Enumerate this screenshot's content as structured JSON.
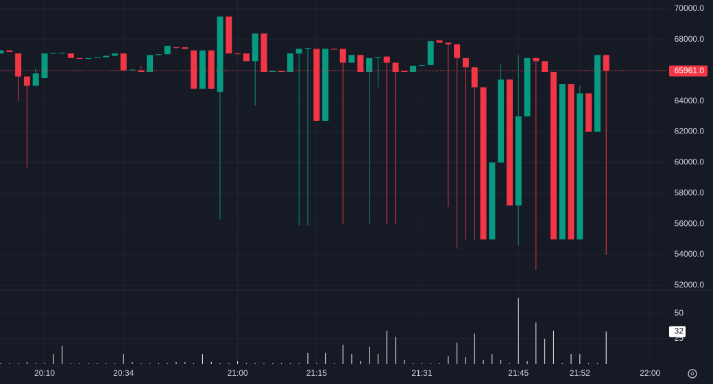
{
  "chart_data": {
    "type": "candlestick",
    "categories": [
      null,
      null,
      null,
      null,
      null,
      "20:10",
      null,
      null,
      null,
      null,
      null,
      null,
      null,
      null,
      "20:34",
      null,
      null,
      null,
      null,
      null,
      null,
      null,
      null,
      null,
      null,
      null,
      null,
      "21:00",
      null,
      null,
      null,
      null,
      null,
      null,
      null,
      null,
      "21:15",
      null,
      null,
      null,
      null,
      null,
      null,
      null,
      null,
      null,
      null,
      null,
      "21:31",
      null,
      null,
      null,
      null,
      null,
      null,
      null,
      null,
      null,
      null,
      "21:45",
      null,
      null,
      null,
      null,
      null,
      null,
      "21:52",
      null,
      null,
      null,
      null,
      null,
      null,
      null,
      "22:00"
    ],
    "open": [
      67100,
      67300,
      67100,
      65600,
      65000,
      65500,
      67100,
      67100,
      67100,
      66800,
      66750,
      66800,
      66850,
      66950,
      67100,
      66000,
      66000,
      65900,
      67000,
      67050,
      67500,
      67500,
      67300,
      64800,
      67300,
      64600,
      69500,
      67100,
      67100,
      66600,
      68400,
      65900,
      65950,
      65900,
      67100,
      67400,
      67400,
      62700,
      67400,
      67400,
      66500,
      67000,
      65900,
      66800,
      66900,
      66500,
      65950,
      65900,
      66300,
      66350,
      67950,
      67800,
      67700,
      66800,
      66200,
      64900,
      55000,
      60000,
      65400,
      57200,
      63000,
      66800,
      66600,
      65900,
      55000,
      65100,
      55000,
      64500,
      62000,
      67000,
      null,
      null,
      null,
      null,
      null
    ],
    "high": [
      67300,
      67300,
      67100,
      65600,
      66100,
      67100,
      67120,
      67150,
      67100,
      66800,
      66800,
      66850,
      66950,
      67100,
      67100,
      66050,
      66300,
      67000,
      67050,
      67600,
      67500,
      67500,
      67300,
      67300,
      67300,
      69500,
      69500,
      67100,
      67100,
      68400,
      68400,
      65950,
      65950,
      67100,
      67400,
      67450,
      67400,
      67400,
      67400,
      67400,
      67000,
      67000,
      66800,
      66850,
      66900,
      66500,
      65950,
      66300,
      66350,
      67900,
      67950,
      67800,
      67700,
      66800,
      66200,
      64900,
      60000,
      66400,
      65400,
      67000,
      66800,
      66800,
      66600,
      65900,
      65100,
      65100,
      65000,
      64500,
      67000,
      67000,
      null,
      null,
      null,
      null,
      null
    ],
    "low": [
      67100,
      67200,
      64000,
      59600,
      65000,
      65500,
      67100,
      67100,
      66800,
      66750,
      66750,
      66800,
      66850,
      66950,
      66000,
      66000,
      65900,
      65900,
      67000,
      67050,
      67450,
      67400,
      64800,
      64800,
      64800,
      56300,
      67100,
      67050,
      66600,
      63700,
      65900,
      65900,
      65900,
      65900,
      55900,
      55900,
      62700,
      62700,
      67350,
      56000,
      66500,
      65900,
      56000,
      64900,
      56000,
      56000,
      65900,
      65900,
      66300,
      66350,
      67800,
      57100,
      54400,
      55000,
      55000,
      55000,
      55000,
      60000,
      57200,
      54600,
      63000,
      53000,
      65900,
      55000,
      55000,
      55000,
      55000,
      62000,
      62000,
      54000,
      null,
      null,
      null,
      null,
      null
    ],
    "close": [
      67300,
      67200,
      65600,
      65000,
      65800,
      67100,
      67120,
      67150,
      66800,
      66750,
      66800,
      66850,
      66950,
      67100,
      66000,
      66050,
      65900,
      67000,
      67050,
      67600,
      67450,
      67400,
      64800,
      67300,
      64800,
      69500,
      67100,
      67050,
      66600,
      68400,
      65900,
      65950,
      65900,
      67100,
      67400,
      67450,
      62700,
      67400,
      67350,
      66500,
      67000,
      65900,
      66800,
      66850,
      66500,
      65900,
      65900,
      66300,
      66350,
      67900,
      67800,
      67700,
      66800,
      66200,
      64900,
      55000,
      60000,
      65400,
      57200,
      63000,
      66800,
      66600,
      65900,
      55000,
      65100,
      55000,
      64500,
      62000,
      67000,
      65961,
      null,
      null,
      null,
      null,
      null
    ],
    "last_close_label": "65961.0",
    "up_color": "#089981",
    "down_color": "#f23645",
    "ylim": [
      51730,
      70580
    ],
    "yticks": [
      {
        "value": 52000,
        "label": "52000.0"
      },
      {
        "value": 54000,
        "label": "54000.0"
      },
      {
        "value": 56000,
        "label": "56000.0"
      },
      {
        "value": 58000,
        "label": "58000.0"
      },
      {
        "value": 60000,
        "label": "60000.0"
      },
      {
        "value": 62000,
        "label": "62000.0"
      },
      {
        "value": 64000,
        "label": "64000.0"
      },
      {
        "value": 66000,
        "label": "66000.0"
      },
      {
        "value": 68000,
        "label": "68000.0"
      },
      {
        "value": 70000,
        "label": "70000.0"
      }
    ],
    "volume": {
      "color": "#ffffff",
      "values": [
        1,
        1,
        1,
        2,
        1,
        1,
        10,
        18,
        1,
        1,
        1,
        1,
        1,
        1,
        10,
        2,
        1,
        1,
        1,
        1,
        2,
        2,
        1,
        10,
        2,
        1,
        1,
        3,
        1,
        1,
        1,
        1,
        1,
        1,
        1,
        11,
        1,
        11,
        1,
        19,
        10,
        3,
        17,
        10,
        33,
        27,
        4,
        1,
        1,
        1,
        1,
        8,
        21,
        7,
        30,
        4,
        10,
        4,
        1,
        65,
        3,
        41,
        25,
        33,
        1,
        10,
        10,
        1,
        1,
        32,
        null,
        null,
        null,
        null,
        null
      ],
      "ylim": [
        0,
        72
      ],
      "yticks": [
        25,
        50
      ]
    },
    "grid": true
  }
}
